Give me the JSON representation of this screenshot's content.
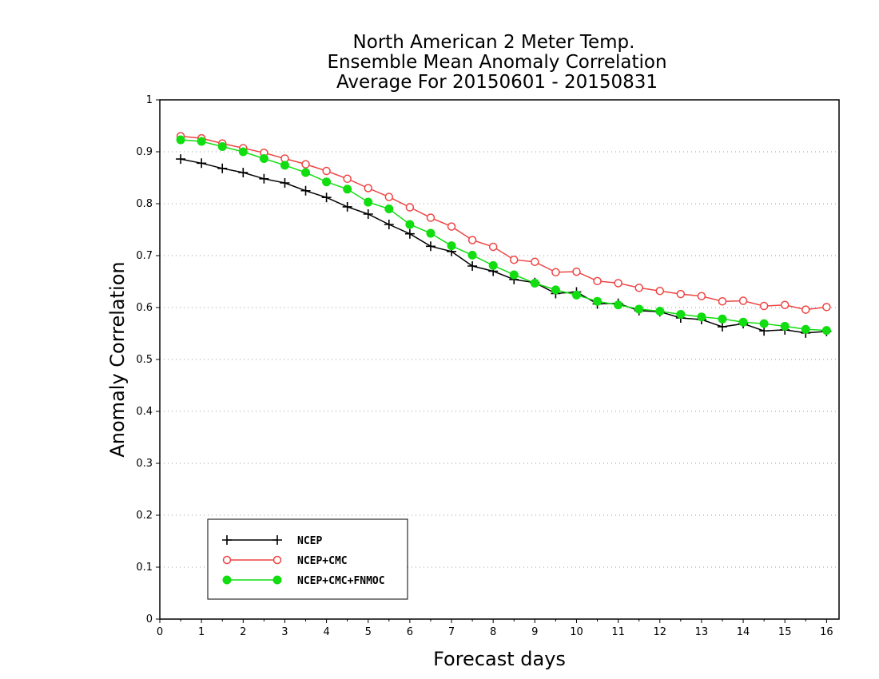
{
  "chart_data": {
    "type": "line",
    "title": [
      "North American 2 Meter Temp.",
      "Ensemble Mean Anomaly Correlation",
      "Average For 20150601 - 20150831"
    ],
    "xlabel": "Forecast days",
    "ylabel": "Anomaly Correlation",
    "xlim": [
      0,
      16.3
    ],
    "ylim": [
      0,
      1
    ],
    "xticks": [
      "0",
      "1",
      "2",
      "3",
      "4",
      "5",
      "6",
      "7",
      "8",
      "9",
      "10",
      "11",
      "12",
      "13",
      "14",
      "15",
      "16"
    ],
    "yticks": [
      "0",
      "0.1",
      "0.2",
      "0.3",
      "0.4",
      "0.5",
      "0.6",
      "0.7",
      "0.8",
      "0.9",
      "1"
    ],
    "grid": "horizontal dotted",
    "legend_position": "bottom-left",
    "x": [
      0.5,
      1,
      1.5,
      2,
      2.5,
      3,
      3.5,
      4,
      4.5,
      5,
      5.5,
      6,
      6.5,
      7,
      7.5,
      8,
      8.5,
      9,
      9.5,
      10,
      10.5,
      11,
      11.5,
      12,
      12.5,
      13,
      13.5,
      14,
      14.5,
      15,
      15.5,
      16
    ],
    "series": [
      {
        "name": "NCEP",
        "color": "#000000",
        "marker": "plus",
        "values": [
          0.886,
          0.878,
          0.868,
          0.86,
          0.848,
          0.84,
          0.825,
          0.812,
          0.794,
          0.78,
          0.76,
          0.742,
          0.718,
          0.708,
          0.68,
          0.67,
          0.654,
          0.648,
          0.627,
          0.63,
          0.607,
          0.608,
          0.594,
          0.592,
          0.58,
          0.577,
          0.563,
          0.569,
          0.555,
          0.557,
          0.551,
          0.554
        ]
      },
      {
        "name": "NCEP+CMC",
        "color": "#ee4444",
        "marker": "open-circle",
        "values": [
          0.93,
          0.926,
          0.916,
          0.907,
          0.898,
          0.887,
          0.876,
          0.863,
          0.848,
          0.83,
          0.813,
          0.793,
          0.773,
          0.756,
          0.73,
          0.717,
          0.692,
          0.688,
          0.668,
          0.669,
          0.651,
          0.647,
          0.638,
          0.632,
          0.626,
          0.622,
          0.612,
          0.613,
          0.603,
          0.605,
          0.596,
          0.601
        ]
      },
      {
        "name": "NCEP+CMC+FNMOC",
        "color": "#11dd11",
        "marker": "filled-circle",
        "values": [
          0.923,
          0.92,
          0.91,
          0.9,
          0.887,
          0.874,
          0.86,
          0.842,
          0.828,
          0.803,
          0.79,
          0.76,
          0.743,
          0.719,
          0.701,
          0.681,
          0.663,
          0.647,
          0.634,
          0.624,
          0.612,
          0.605,
          0.597,
          0.593,
          0.587,
          0.582,
          0.578,
          0.572,
          0.569,
          0.564,
          0.558,
          0.556
        ]
      }
    ]
  }
}
